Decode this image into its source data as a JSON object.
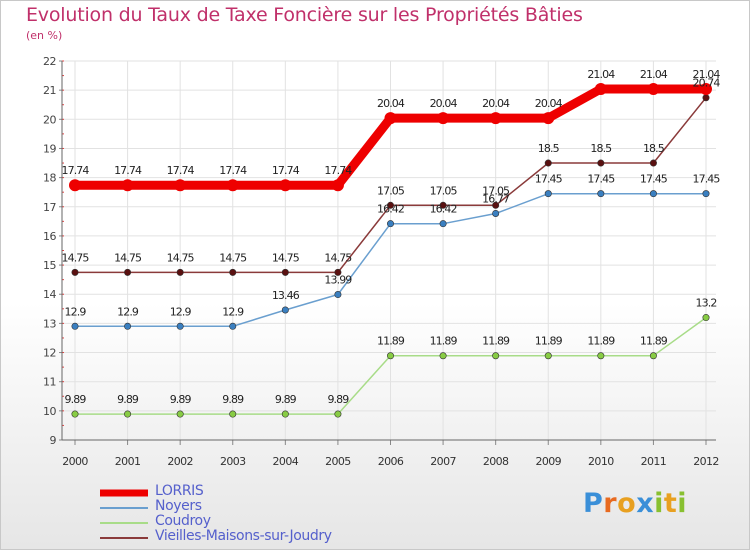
{
  "chart_data": {
    "type": "line",
    "title": "Evolution du Taux de Taxe Foncière sur les Propriétés Bâties",
    "ylabel": "(en %)",
    "xlabel": "",
    "x": [
      "2000",
      "2001",
      "2002",
      "2003",
      "2004",
      "2005",
      "2006",
      "2007",
      "2008",
      "2009",
      "2010",
      "2011",
      "2012"
    ],
    "ylim": [
      9,
      22
    ],
    "yticks": [
      "9",
      "10",
      "11",
      "12",
      "13",
      "14",
      "15",
      "16",
      "17",
      "18",
      "19",
      "20",
      "21",
      "22"
    ],
    "grid": true,
    "legend_position": "bottom-left",
    "series": [
      {
        "name": "LORRIS",
        "color": "#ee0000",
        "marker": "#ee0000",
        "values": [
          17.74,
          17.74,
          17.74,
          17.74,
          17.74,
          17.74,
          20.04,
          20.04,
          20.04,
          20.04,
          21.04,
          21.04,
          21.04
        ],
        "labels": [
          "17.74",
          "17.74",
          "17.74",
          "17.74",
          "17.74",
          "17.74",
          "20.04",
          "20.04",
          "20.04",
          "20.04",
          "21.04",
          "21.04",
          "21.04"
        ],
        "bold": true
      },
      {
        "name": "Noyers",
        "color": "#6a9fcf",
        "marker": "#3a7fc0",
        "values": [
          12.9,
          12.9,
          12.9,
          12.9,
          13.46,
          13.99,
          16.42,
          16.42,
          16.77,
          17.45,
          17.45,
          17.45,
          17.45
        ],
        "labels": [
          "12.9",
          "12.9",
          "12.9",
          "12.9",
          "13.46",
          "13.99",
          "16.42",
          "16.42",
          "16.77",
          "17.45",
          "17.45",
          "17.45",
          "17.45"
        ],
        "bold": false
      },
      {
        "name": "Coudroy",
        "color": "#a8dc88",
        "marker": "#88cc44",
        "values": [
          9.89,
          9.89,
          9.89,
          9.89,
          9.89,
          9.89,
          11.89,
          11.89,
          11.89,
          11.89,
          11.89,
          11.89,
          13.2
        ],
        "labels": [
          "9.89",
          "9.89",
          "9.89",
          "9.89",
          "9.89",
          "9.89",
          "11.89",
          "11.89",
          "11.89",
          "11.89",
          "11.89",
          "11.89",
          "13.2"
        ],
        "bold": false
      },
      {
        "name": "Vieilles-Maisons-sur-Joudry",
        "color": "#8a3a3a",
        "marker": "#5a1010",
        "values": [
          14.75,
          14.75,
          14.75,
          14.75,
          14.75,
          14.75,
          17.05,
          17.05,
          17.05,
          18.5,
          18.5,
          18.5,
          20.74
        ],
        "labels": [
          "14.75",
          "14.75",
          "14.75",
          "14.75",
          "14.75",
          "14.75",
          "17.05",
          "17.05",
          "17.05",
          "18.5",
          "18.5",
          "18.5",
          "20.74"
        ],
        "bold": false
      }
    ]
  },
  "legend": {
    "items": [
      {
        "label": "LORRIS",
        "color": "#ee0000",
        "thickness": 7
      },
      {
        "label": "Noyers",
        "color": "#6a9fcf",
        "thickness": 2
      },
      {
        "label": "Coudroy",
        "color": "#a8dc88",
        "thickness": 2
      },
      {
        "label": "Vieilles-Maisons-sur-Joudry",
        "color": "#8a3a3a",
        "thickness": 2
      }
    ]
  },
  "logo": {
    "text": "Proxiti",
    "letter_colors": [
      "#3a8fd8",
      "#e86a20",
      "#e8a020",
      "#3a8fd8",
      "#88c030",
      "#e8a020",
      "#88c030"
    ]
  }
}
